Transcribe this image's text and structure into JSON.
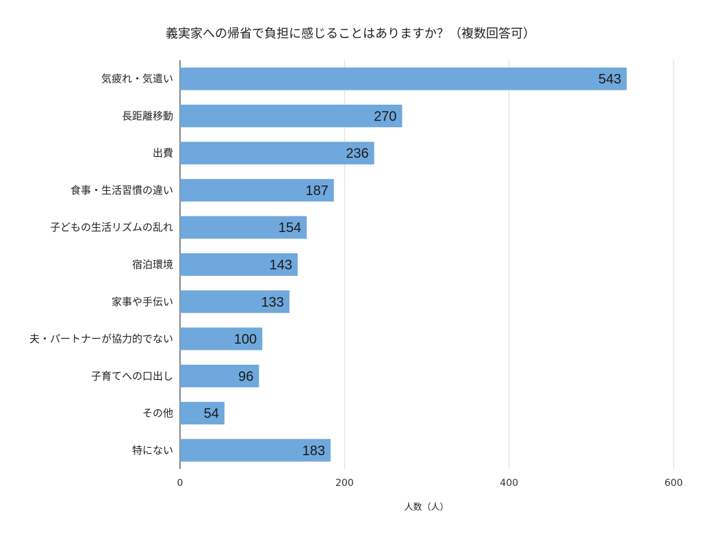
{
  "chart_data": {
    "type": "bar",
    "orientation": "horizontal",
    "title": "義実家への帰省で負担に感じることはありますか？（複数回答可）",
    "xlabel": "人数（人）",
    "ylabel": "",
    "categories": [
      "気疲れ・気遣い",
      "長距離移動",
      "出費",
      "食事・生活習慣の違い",
      "子どもの生活リズムの乱れ",
      "宿泊環境",
      "家事や手伝い",
      "夫・パートナーが協力的でない",
      "子育てへの口出し",
      "その他",
      "特にない"
    ],
    "values": [
      543,
      270,
      236,
      187,
      154,
      143,
      133,
      100,
      96,
      54,
      183
    ],
    "xlim": [
      0,
      600
    ],
    "xticks": [
      0,
      200,
      400,
      600
    ],
    "grid": true,
    "legend": "none",
    "bar_color": "#6fa8dc",
    "gridline_color": "#d9d9d9"
  }
}
